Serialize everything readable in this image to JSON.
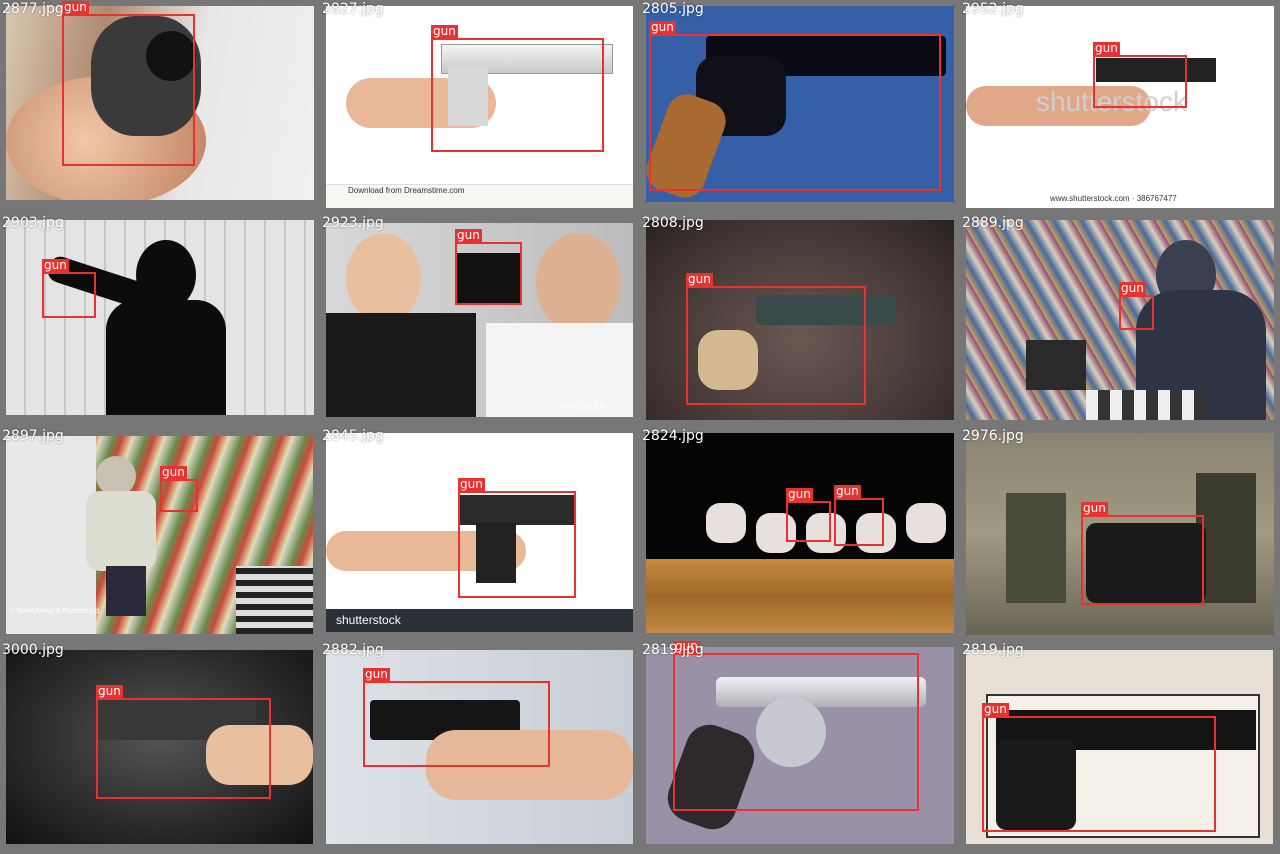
{
  "colors": {
    "box": "#e8322f",
    "background": "#7b7b7b"
  },
  "detection_label": "gun",
  "tiles": [
    {
      "file": "2877.jpg",
      "labels": [
        "gun"
      ]
    },
    {
      "file": "2827.jpg",
      "labels": [
        "gun"
      ]
    },
    {
      "file": "2805.jpg",
      "labels": [
        "gun"
      ]
    },
    {
      "file": "2952.jpg",
      "labels": [
        "gun"
      ]
    },
    {
      "file": "2903.jpg",
      "labels": [
        "gun"
      ]
    },
    {
      "file": "2923.jpg",
      "labels": [
        "gun"
      ]
    },
    {
      "file": "2808.jpg",
      "labels": [
        "gun"
      ]
    },
    {
      "file": "2889.jpg",
      "labels": [
        "gun"
      ]
    },
    {
      "file": "2897.jpg",
      "labels": [
        "gun"
      ]
    },
    {
      "file": "2845.jpg",
      "labels": [
        "gun"
      ]
    },
    {
      "file": "2824.jpg",
      "labels": [
        "gun",
        "gun"
      ]
    },
    {
      "file": "2976.jpg",
      "labels": [
        "gun"
      ]
    },
    {
      "file": "3000.jpg",
      "labels": [
        "gun"
      ]
    },
    {
      "file": "2882.jpg",
      "labels": [
        "gun"
      ]
    },
    {
      "file": "2819.jpg",
      "labels": [
        "gun"
      ]
    },
    {
      "file": "2819.jpg",
      "labels": [
        "gun"
      ]
    }
  ],
  "watermarks": {
    "shutterstock": "shutterstock",
    "shutterstock_url": "www.shutterstock.com · 386767477",
    "dreamstime": "Download from Dreamstime.com",
    "north_news": "© North News & Pictures Ltd",
    "wikigeek": "wikiGEEK",
    "shutterstock_short": "shutterstock"
  }
}
